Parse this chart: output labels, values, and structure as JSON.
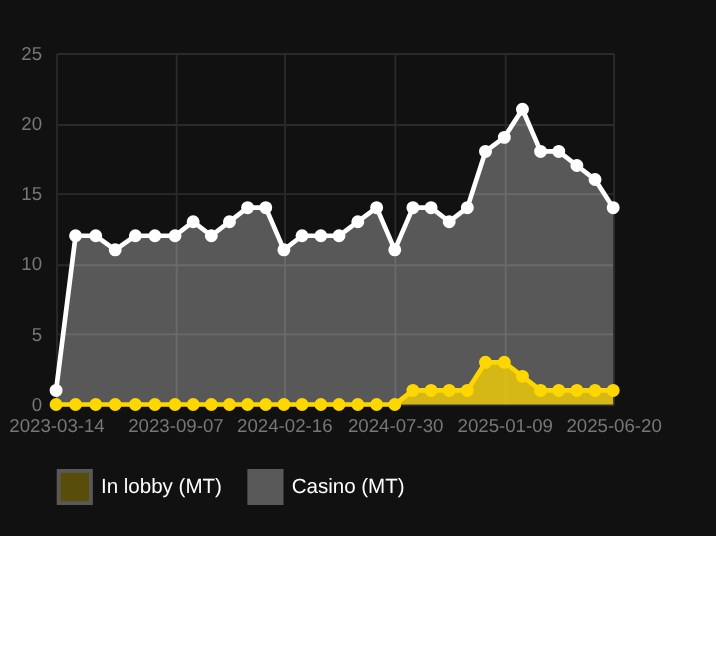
{
  "chart_data": {
    "type": "area",
    "x": [
      "2023-03-14",
      "2023-04-12",
      "2023-05-12",
      "2023-06-10",
      "2023-07-10",
      "2023-08-08",
      "2023-09-07",
      "2023-10-04",
      "2023-10-31",
      "2023-11-27",
      "2023-12-24",
      "2024-01-20",
      "2024-02-16",
      "2024-03-14",
      "2024-04-11",
      "2024-05-08",
      "2024-06-05",
      "2024-07-03",
      "2024-07-30",
      "2024-08-26",
      "2024-09-22",
      "2024-10-19",
      "2024-11-15",
      "2024-12-12",
      "2025-01-09",
      "2025-02-05",
      "2025-03-04",
      "2025-03-31",
      "2025-04-27",
      "2025-05-24",
      "2025-06-20"
    ],
    "series": [
      {
        "name": "In lobby (MT)",
        "color": "#ffd700",
        "values": [
          0,
          0,
          0,
          0,
          0,
          0,
          0,
          0,
          0,
          0,
          0,
          0,
          0,
          0,
          0,
          0,
          0,
          0,
          0,
          1,
          1,
          1,
          1,
          3,
          3,
          2,
          1,
          1,
          1,
          1,
          1
        ]
      },
      {
        "name": "Casino (MT)",
        "color": "#ffffff",
        "values": [
          1,
          12,
          12,
          11,
          12,
          12,
          12,
          13,
          12,
          13,
          14,
          14,
          11,
          12,
          12,
          12,
          13,
          14,
          11,
          14,
          14,
          13,
          14,
          18,
          19,
          21,
          18,
          18,
          17,
          16,
          14
        ]
      }
    ],
    "xlim": [
      "2023-03-14",
      "2025-06-20"
    ],
    "xticks": [
      "2023-03-14",
      "2023-09-07",
      "2024-02-16",
      "2024-07-30",
      "2025-01-09",
      "2025-06-20"
    ],
    "ylim": [
      0,
      25
    ],
    "yticks": [
      0,
      5,
      10,
      15,
      20,
      25
    ],
    "grid": true,
    "legend": "bottom",
    "marker": "circle",
    "line_style": "solid"
  }
}
